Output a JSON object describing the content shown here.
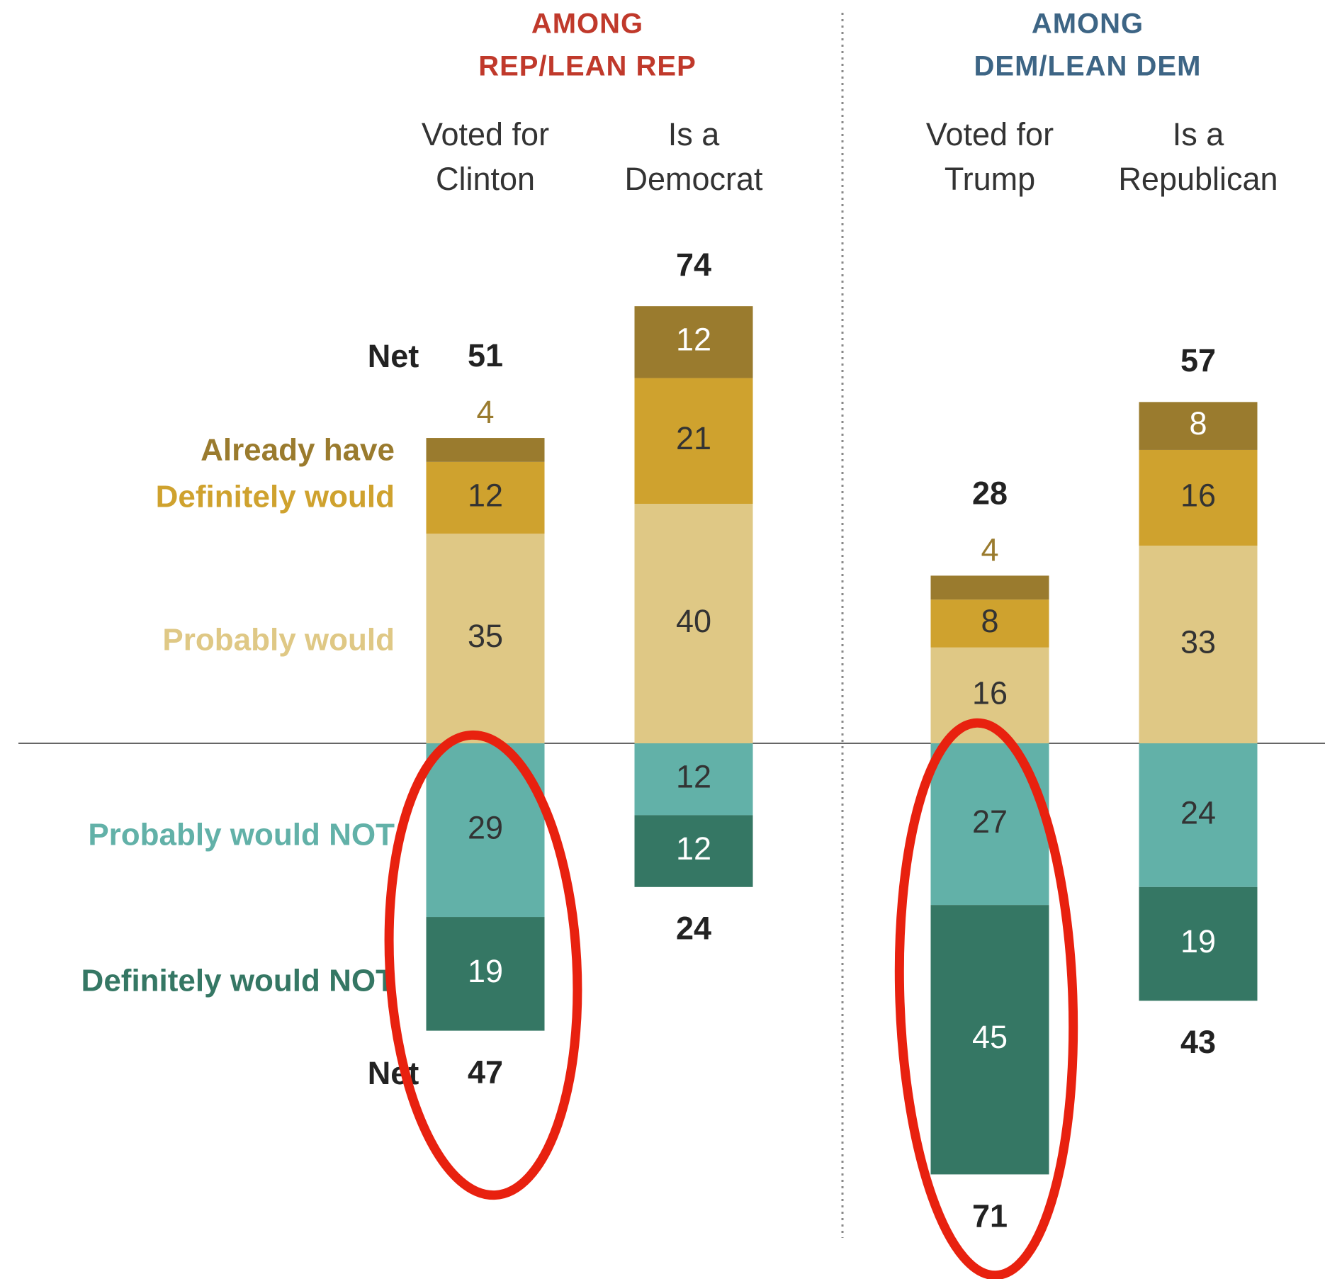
{
  "chart_data": {
    "type": "diverging-stacked-bar",
    "groups": [
      {
        "title": [
          "AMONG",
          "REP/LEAN REP"
        ],
        "color": "#c0392b"
      },
      {
        "title": [
          "AMONG",
          "DEM/LEAN DEM"
        ],
        "color": "#3d6585"
      }
    ],
    "categories": [
      [
        "Voted for",
        "Clinton"
      ],
      [
        "Is a",
        "Democrat"
      ],
      [
        "Voted for",
        "Trump"
      ],
      [
        "Is a",
        "Republican"
      ]
    ],
    "series": [
      {
        "name": "Already have",
        "color": "#9a7b2e",
        "values": [
          4,
          12,
          4,
          8
        ]
      },
      {
        "name": "Definitely would",
        "color": "#cfa22e",
        "values": [
          12,
          21,
          8,
          16
        ]
      },
      {
        "name": "Probably would",
        "color": "#dfc885",
        "values": [
          35,
          40,
          16,
          33
        ]
      },
      {
        "name": "Probably would NOT",
        "color": "#62b1a8",
        "values": [
          29,
          12,
          27,
          24
        ]
      },
      {
        "name": "Definitely would NOT",
        "color": "#357764",
        "values": [
          19,
          12,
          45,
          19
        ]
      }
    ],
    "net_label": "Net",
    "net_positive": [
      51,
      74,
      28,
      57
    ],
    "net_negative": [
      47,
      24,
      71,
      43
    ]
  }
}
